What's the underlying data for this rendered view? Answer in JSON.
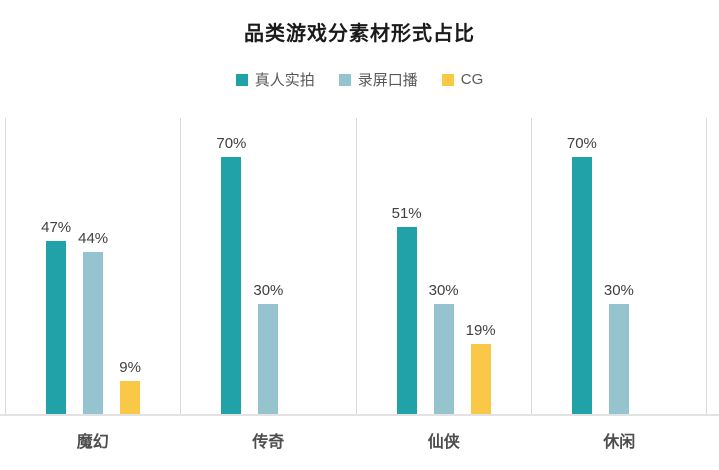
{
  "chart": {
    "title": "品类游戏分素材形式占比"
  },
  "chart_data": {
    "type": "bar",
    "title": "品类游戏分素材形式占比",
    "categories": [
      "魔幻",
      "传奇",
      "仙侠",
      "休闲"
    ],
    "series": [
      {
        "name": "真人实拍",
        "color": "#21a2a8",
        "values": [
          47,
          70,
          51,
          70
        ]
      },
      {
        "name": "录屏口播",
        "color": "#96c4ce",
        "values": [
          44,
          30,
          30,
          30
        ]
      },
      {
        "name": "CG",
        "color": "#f9c847",
        "values": [
          9,
          null,
          19,
          null
        ]
      }
    ],
    "value_labels": [
      [
        "47%",
        "70%",
        "51%",
        "70%"
      ],
      [
        "44%",
        "30%",
        "30%",
        "30%"
      ],
      [
        "9%",
        null,
        "19%",
        null
      ]
    ],
    "ylim": [
      0,
      80.6
    ],
    "xlabel": "",
    "ylabel": "",
    "grid": "vertical group separators + bottom axis line",
    "legend_position": "top",
    "colors": {
      "grid_line": "#d9d9d9",
      "axis_line": "#e2e2e2",
      "title_text": "#1a1a1a",
      "legend_text": "#595959",
      "value_label_text": "#404040",
      "category_label_text": "#4d4d4d",
      "background": "#ffffff"
    }
  }
}
